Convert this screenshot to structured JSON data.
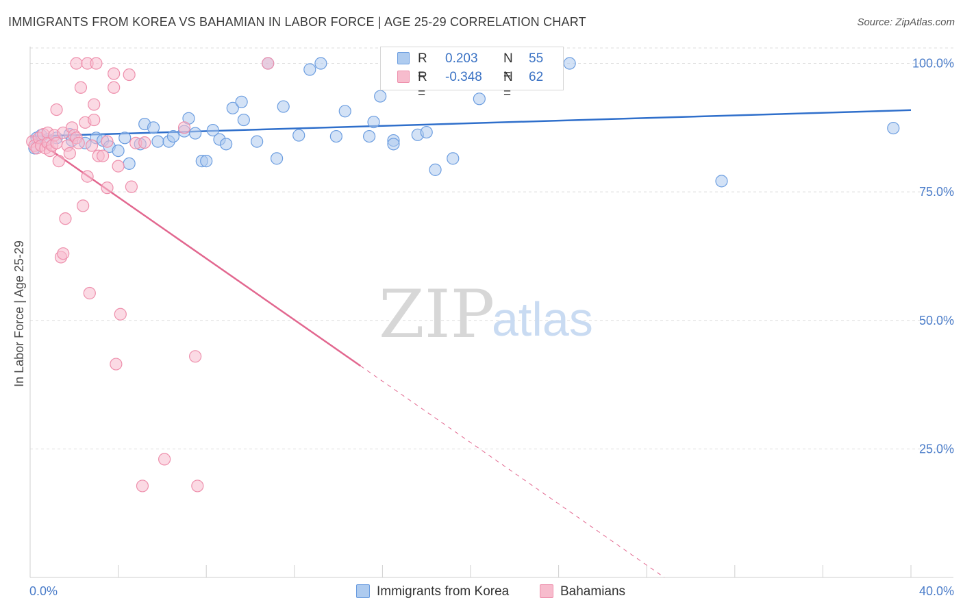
{
  "title": "IMMIGRANTS FROM KOREA VS BAHAMIAN IN LABOR FORCE | AGE 25-29 CORRELATION CHART",
  "source": "Source: ZipAtlas.com",
  "watermark": {
    "zip": "ZIP",
    "atlas": "atlas"
  },
  "legend": {
    "rows": [
      {
        "r_label": "R =",
        "r_value": "0.203",
        "n_label": "N =",
        "n_value": "55"
      },
      {
        "r_label": "R =",
        "r_value": "-0.348",
        "n_label": "N =",
        "n_value": "62"
      }
    ]
  },
  "bottom_legend": {
    "korea": "Immigrants from Korea",
    "bahamian": "Bahamians"
  },
  "colors": {
    "korea_fill": "#aecbef",
    "korea_stroke": "#6b9de0",
    "korea_line": "#2f6fcb",
    "bahamian_fill": "#f7bccd",
    "bahamian_stroke": "#ee8fac",
    "bahamian_line": "#e2678f",
    "tick_text": "#4a7cc9",
    "grid": "#dddddd"
  },
  "chart_data": {
    "type": "scatter",
    "title": "IMMIGRANTS FROM KOREA VS BAHAMIAN IN LABOR FORCE | AGE 25-29 CORRELATION CHART",
    "xlabel": "",
    "ylabel": "In Labor Force | Age 25-29",
    "xlim": [
      0,
      40
    ],
    "ylim": [
      0,
      103
    ],
    "x_tick_labels": [
      "0.0%",
      "40.0%"
    ],
    "y_ticks": [
      25,
      50,
      75,
      100
    ],
    "y_tick_labels": [
      "25.0%",
      "50.0%",
      "75.0%",
      "100.0%"
    ],
    "grid": true,
    "series": [
      {
        "name": "Immigrants from Korea",
        "r": 0.203,
        "n": 55,
        "trend": {
          "x": [
            0,
            40
          ],
          "y": [
            85.8,
            90.9
          ],
          "dashed_from": null
        },
        "points": [
          [
            0.2,
            83.5
          ],
          [
            0.3,
            85.5
          ],
          [
            0.5,
            86.0
          ],
          [
            0.8,
            85.2
          ],
          [
            1.2,
            85.5
          ],
          [
            1.8,
            86.2
          ],
          [
            1.9,
            85.0
          ],
          [
            2.5,
            84.5
          ],
          [
            3.0,
            85.5
          ],
          [
            3.3,
            85.0
          ],
          [
            3.6,
            83.8
          ],
          [
            4.0,
            83.0
          ],
          [
            4.3,
            85.5
          ],
          [
            4.5,
            80.5
          ],
          [
            5.0,
            84.3
          ],
          [
            5.2,
            88.2
          ],
          [
            5.6,
            87.5
          ],
          [
            5.8,
            84.8
          ],
          [
            6.3,
            84.8
          ],
          [
            6.5,
            85.8
          ],
          [
            7.0,
            86.8
          ],
          [
            7.2,
            89.3
          ],
          [
            7.5,
            86.4
          ],
          [
            7.8,
            81.0
          ],
          [
            8.0,
            81.0
          ],
          [
            8.3,
            87.0
          ],
          [
            8.6,
            85.2
          ],
          [
            8.9,
            84.3
          ],
          [
            9.2,
            91.3
          ],
          [
            9.6,
            92.5
          ],
          [
            9.7,
            89.0
          ],
          [
            10.3,
            84.8
          ],
          [
            10.8,
            100.0
          ],
          [
            11.2,
            81.5
          ],
          [
            11.5,
            91.6
          ],
          [
            12.2,
            86.0
          ],
          [
            12.7,
            98.8
          ],
          [
            13.2,
            100.0
          ],
          [
            13.9,
            85.8
          ],
          [
            14.3,
            90.7
          ],
          [
            15.4,
            85.8
          ],
          [
            15.6,
            88.6
          ],
          [
            15.9,
            93.6
          ],
          [
            16.5,
            85.0
          ],
          [
            16.5,
            84.3
          ],
          [
            17.6,
            86.1
          ],
          [
            18.0,
            86.6
          ],
          [
            18.4,
            79.3
          ],
          [
            19.2,
            81.5
          ],
          [
            20.4,
            93.1
          ],
          [
            24.5,
            100.0
          ],
          [
            31.4,
            77.1
          ],
          [
            39.2,
            87.4
          ]
        ]
      },
      {
        "name": "Bahamians",
        "r": -0.348,
        "n": 62,
        "trend": {
          "x": [
            0,
            28.8
          ],
          "y": [
            85.9,
            0.0
          ],
          "dashed_from": 15.0
        },
        "points": [
          [
            0.1,
            84.8
          ],
          [
            0.2,
            84.0
          ],
          [
            0.3,
            83.5
          ],
          [
            0.4,
            85.5
          ],
          [
            0.5,
            84.0
          ],
          [
            0.6,
            86.2
          ],
          [
            0.7,
            83.5
          ],
          [
            0.8,
            86.5
          ],
          [
            0.8,
            84.5
          ],
          [
            0.9,
            83.0
          ],
          [
            1.0,
            84.0
          ],
          [
            1.1,
            86.0
          ],
          [
            1.2,
            91.0
          ],
          [
            1.2,
            84.5
          ],
          [
            1.3,
            81.0
          ],
          [
            1.4,
            62.3
          ],
          [
            1.5,
            86.5
          ],
          [
            1.5,
            63.0
          ],
          [
            1.6,
            69.8
          ],
          [
            1.7,
            84.0
          ],
          [
            1.8,
            82.5
          ],
          [
            1.9,
            87.5
          ],
          [
            2.0,
            86.0
          ],
          [
            2.1,
            85.5
          ],
          [
            2.1,
            100.0
          ],
          [
            2.2,
            84.5
          ],
          [
            2.3,
            95.3
          ],
          [
            2.4,
            72.3
          ],
          [
            2.5,
            88.5
          ],
          [
            2.6,
            100.0
          ],
          [
            2.6,
            78.0
          ],
          [
            2.7,
            55.3
          ],
          [
            2.8,
            84.0
          ],
          [
            2.9,
            89.0
          ],
          [
            2.9,
            92.0
          ],
          [
            3.0,
            100.0
          ],
          [
            3.1,
            82.0
          ],
          [
            3.3,
            82.0
          ],
          [
            3.5,
            84.8
          ],
          [
            3.5,
            75.8
          ],
          [
            3.8,
            98.0
          ],
          [
            3.8,
            95.3
          ],
          [
            3.9,
            41.5
          ],
          [
            4.0,
            80.0
          ],
          [
            4.1,
            51.2
          ],
          [
            4.5,
            97.8
          ],
          [
            4.6,
            76.0
          ],
          [
            4.8,
            84.5
          ],
          [
            5.1,
            17.8
          ],
          [
            5.2,
            84.6
          ],
          [
            6.1,
            23.0
          ],
          [
            7.0,
            87.5
          ],
          [
            7.5,
            43.0
          ],
          [
            7.6,
            17.8
          ],
          [
            10.8,
            100.0
          ]
        ]
      }
    ]
  }
}
